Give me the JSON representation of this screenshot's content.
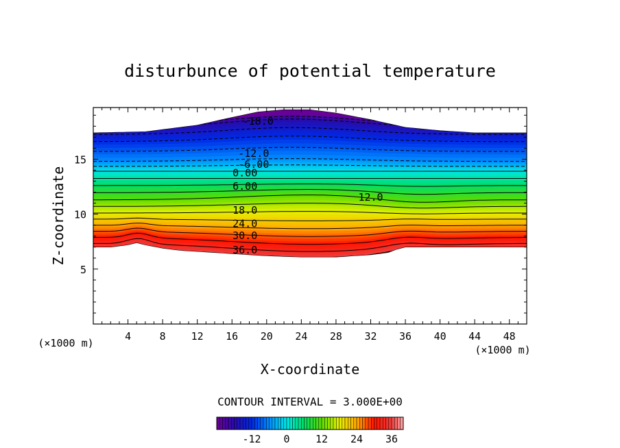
{
  "chart_data": {
    "type": "contour",
    "title": "disturbunce of potential temperature",
    "xlabel": "X-coordinate",
    "ylabel": "Z-coordinate",
    "x_unit_label": "(×1000 m)",
    "y_unit_label": "(×1000 m)",
    "xlim": [
      0,
      50
    ],
    "ylim": [
      0,
      19.7
    ],
    "x_ticks": [
      4,
      8,
      12,
      16,
      20,
      24,
      28,
      32,
      36,
      40,
      44,
      48
    ],
    "y_ticks": [
      5,
      10,
      15
    ],
    "contour_interval_text": "CONTOUR INTERVAL = 3.000E+00",
    "contour_interval": 3,
    "value_range": [
      -24,
      40
    ],
    "colorbar": {
      "min": -24,
      "max": 40,
      "tick_values": [
        -12,
        0,
        12,
        24,
        36
      ],
      "tick_labels": [
        "-12",
        "0",
        "12",
        "24",
        "36"
      ]
    },
    "top_boundary": {
      "x": [
        0,
        6,
        12,
        16,
        19,
        22,
        25,
        28,
        32,
        36,
        40,
        44,
        48,
        50
      ],
      "z": [
        17.4,
        17.5,
        18.1,
        18.8,
        19.3,
        19.5,
        19.5,
        19.2,
        18.6,
        17.9,
        17.6,
        17.4,
        17.4,
        17.4
      ]
    },
    "bottom_boundary": {
      "x": [
        0,
        2,
        4,
        5,
        6,
        8,
        10,
        12,
        16,
        20,
        24,
        28,
        32,
        34,
        35,
        36,
        38,
        40,
        44,
        48,
        50
      ],
      "z": [
        7.0,
        7.0,
        7.2,
        7.4,
        7.2,
        6.9,
        6.7,
        6.6,
        6.4,
        6.2,
        6.1,
        6.1,
        6.3,
        6.5,
        6.8,
        7.0,
        7.0,
        7.0,
        7.0,
        7.0,
        7.0
      ]
    },
    "contour_labels": [
      {
        "text": "-18.0",
        "x": 19.0,
        "z": 18.5
      },
      {
        "text": "-12.0",
        "x": 18.5,
        "z": 15.6
      },
      {
        "text": "-6.00",
        "x": 18.5,
        "z": 14.6
      },
      {
        "text": "0.00",
        "x": 17.5,
        "z": 13.8
      },
      {
        "text": "6.00",
        "x": 17.5,
        "z": 12.6
      },
      {
        "text": "12.0",
        "x": 32.0,
        "z": 11.6
      },
      {
        "text": "18.0",
        "x": 17.5,
        "z": 10.4
      },
      {
        "text": "24.0",
        "x": 17.5,
        "z": 9.2
      },
      {
        "text": "30.0",
        "x": 17.5,
        "z": 8.1
      },
      {
        "text": "36.0",
        "x": 17.5,
        "z": 6.8
      }
    ]
  }
}
